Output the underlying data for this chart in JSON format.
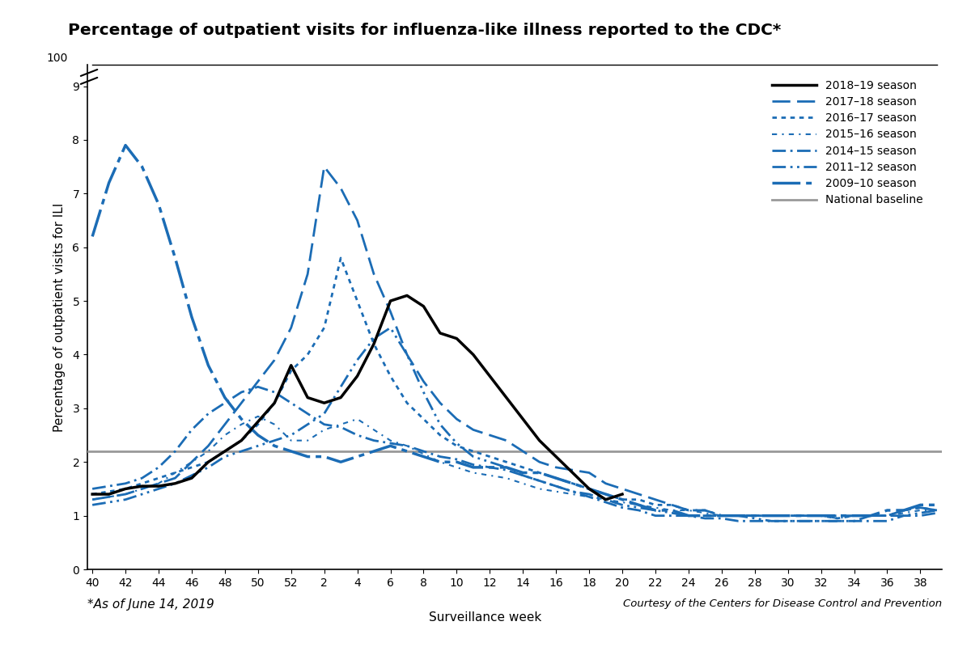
{
  "title": "Percentage of outpatient visits for influenza-like illness reported to the CDC*",
  "ylabel": "Percentage of outpatient visits for ILI",
  "xlabel": "Surveillance week",
  "footnote_left": "*As of June 14, 2019",
  "footnote_right": "Courtesy of the Centers for Disease Control and Prevention",
  "x_ticks": [
    40,
    42,
    44,
    46,
    48,
    50,
    52,
    2,
    4,
    6,
    8,
    10,
    12,
    14,
    16,
    18,
    20,
    22,
    24,
    26,
    28,
    30,
    32,
    34,
    36,
    38
  ],
  "ylim": [
    0,
    9.4
  ],
  "yticks": [
    0,
    1,
    2,
    3,
    4,
    5,
    6,
    7,
    8,
    9
  ],
  "national_baseline": 2.2,
  "background_color": "#ffffff",
  "blue_color": "#1B6CB5",
  "gray_color": "#999999",
  "black_color": "#000000",
  "seasons": {
    "2018_19": {
      "label": "2018–19 season",
      "color": "#000000",
      "linestyle": "solid",
      "linewidth": 2.5,
      "x": [
        40,
        41,
        42,
        43,
        44,
        45,
        46,
        47,
        48,
        49,
        50,
        51,
        52,
        1,
        2,
        3,
        4,
        5,
        6,
        7,
        8,
        9,
        10,
        11,
        12,
        13,
        14,
        15,
        16,
        17,
        18,
        19,
        20
      ],
      "y": [
        1.4,
        1.4,
        1.5,
        1.55,
        1.55,
        1.6,
        1.7,
        2.0,
        2.2,
        2.4,
        2.75,
        3.1,
        3.8,
        3.2,
        3.1,
        3.2,
        3.6,
        4.2,
        5.0,
        5.1,
        4.9,
        4.4,
        4.3,
        4.0,
        3.6,
        3.2,
        2.8,
        2.4,
        2.1,
        1.8,
        1.5,
        1.3,
        1.4
      ]
    },
    "2017_18": {
      "label": "2017–18 season",
      "color": "#1B6CB5",
      "linestyle": "dashed",
      "linewidth": 2.0,
      "x": [
        40,
        41,
        42,
        43,
        44,
        45,
        46,
        47,
        48,
        49,
        50,
        51,
        52,
        1,
        2,
        3,
        4,
        5,
        6,
        7,
        8,
        9,
        10,
        11,
        12,
        13,
        14,
        15,
        16,
        17,
        18,
        19,
        20,
        21,
        22,
        23,
        24,
        25,
        26,
        27,
        28,
        29,
        30,
        31,
        32,
        33,
        34,
        35,
        36,
        37,
        38,
        39
      ],
      "y": [
        1.3,
        1.35,
        1.4,
        1.5,
        1.6,
        1.7,
        2.0,
        2.3,
        2.7,
        3.1,
        3.5,
        3.9,
        4.5,
        5.5,
        7.5,
        7.1,
        6.5,
        5.5,
        4.8,
        4.0,
        3.5,
        3.1,
        2.8,
        2.6,
        2.5,
        2.4,
        2.2,
        2.0,
        1.9,
        1.85,
        1.8,
        1.6,
        1.5,
        1.4,
        1.3,
        1.2,
        1.1,
        1.1,
        1.0,
        1.0,
        1.0,
        1.0,
        1.0,
        1.0,
        1.0,
        1.0,
        1.0,
        1.0,
        1.0,
        1.1,
        1.15,
        1.1
      ]
    },
    "2016_17": {
      "label": "2016–17 season",
      "color": "#1B6CB5",
      "linestyle": "dotted",
      "linewidth": 2.0,
      "x": [
        40,
        41,
        42,
        43,
        44,
        45,
        46,
        47,
        48,
        49,
        50,
        51,
        52,
        1,
        2,
        3,
        4,
        5,
        6,
        7,
        8,
        9,
        10,
        11,
        12,
        13,
        14,
        15,
        16,
        17,
        18,
        19,
        20,
        21,
        22,
        23,
        24,
        25,
        26,
        27,
        28,
        29,
        30,
        31,
        32,
        33,
        34,
        35,
        36,
        37,
        38,
        39
      ],
      "y": [
        1.4,
        1.45,
        1.5,
        1.6,
        1.7,
        1.8,
        1.9,
        2.0,
        2.2,
        2.4,
        2.7,
        3.1,
        3.7,
        4.0,
        4.5,
        5.8,
        5.0,
        4.2,
        3.6,
        3.1,
        2.8,
        2.5,
        2.3,
        2.2,
        2.1,
        2.0,
        1.9,
        1.8,
        1.7,
        1.6,
        1.5,
        1.4,
        1.3,
        1.3,
        1.2,
        1.2,
        1.1,
        1.1,
        1.0,
        1.0,
        1.0,
        1.0,
        1.0,
        1.0,
        1.0,
        0.95,
        1.0,
        1.0,
        1.0,
        1.1,
        1.15,
        1.1
      ]
    },
    "2015_16": {
      "label": "2015–16 season",
      "color": "#1B6CB5",
      "linestyle": "dashdot",
      "linewidth": 1.5,
      "x": [
        40,
        41,
        42,
        43,
        44,
        45,
        46,
        47,
        48,
        49,
        50,
        51,
        52,
        1,
        2,
        3,
        4,
        5,
        6,
        7,
        8,
        9,
        10,
        11,
        12,
        13,
        14,
        15,
        16,
        17,
        18,
        19,
        20,
        21,
        22,
        23,
        24,
        25,
        26,
        27,
        28,
        29,
        30,
        31,
        32,
        33,
        34,
        35,
        36,
        37,
        38,
        39
      ],
      "y": [
        1.3,
        1.35,
        1.4,
        1.5,
        1.6,
        1.8,
        2.0,
        2.2,
        2.5,
        2.7,
        2.85,
        2.7,
        2.4,
        2.4,
        2.6,
        2.7,
        2.8,
        2.6,
        2.4,
        2.3,
        2.15,
        2.0,
        1.9,
        1.8,
        1.75,
        1.7,
        1.6,
        1.5,
        1.45,
        1.4,
        1.35,
        1.3,
        1.25,
        1.2,
        1.15,
        1.1,
        1.1,
        1.05,
        1.0,
        1.0,
        1.0,
        1.0,
        1.0,
        1.0,
        1.0,
        0.95,
        1.0,
        1.0,
        1.0,
        1.05,
        1.1,
        1.1
      ]
    },
    "2014_15": {
      "label": "2014–15 season",
      "color": "#1B6CB5",
      "linestyle": "dashed",
      "linewidth": 1.5,
      "x": [
        40,
        41,
        42,
        43,
        44,
        45,
        46,
        47,
        48,
        49,
        50,
        51,
        52,
        1,
        2,
        3,
        4,
        5,
        6,
        7,
        8,
        9,
        10,
        11,
        12,
        13,
        14,
        15,
        16,
        17,
        18,
        19,
        20,
        21,
        22,
        23,
        24,
        25,
        26,
        27,
        28,
        29,
        30,
        31,
        32,
        33,
        34,
        35,
        36,
        37,
        38,
        39
      ],
      "y": [
        1.5,
        1.55,
        1.6,
        1.7,
        1.9,
        2.2,
        2.6,
        2.9,
        3.1,
        3.3,
        3.4,
        3.3,
        3.1,
        2.9,
        2.7,
        2.65,
        2.5,
        2.4,
        2.35,
        2.3,
        2.2,
        2.1,
        2.05,
        1.95,
        1.9,
        1.85,
        1.75,
        1.65,
        1.55,
        1.45,
        1.35,
        1.25,
        1.15,
        1.1,
        1.0,
        1.0,
        1.0,
        0.95,
        0.95,
        0.9,
        0.9,
        0.9,
        0.9,
        0.9,
        0.9,
        0.9,
        0.9,
        0.9,
        0.9,
        1.0,
        1.0,
        1.05
      ]
    },
    "2011_12": {
      "label": "2011–12 season",
      "color": "#1B6CB5",
      "linestyle": "dashdotdotted",
      "linewidth": 2.0,
      "x": [
        40,
        41,
        42,
        43,
        44,
        45,
        46,
        47,
        48,
        49,
        50,
        51,
        52,
        1,
        2,
        3,
        4,
        5,
        6,
        7,
        8,
        9,
        10,
        11,
        12,
        13,
        14,
        15,
        16,
        17,
        18,
        19,
        20,
        21,
        22,
        23,
        24,
        25,
        26,
        27,
        28,
        29,
        30,
        31,
        32,
        33,
        34,
        35,
        36,
        37,
        38,
        39
      ],
      "y": [
        1.2,
        1.25,
        1.3,
        1.4,
        1.5,
        1.6,
        1.75,
        1.9,
        2.1,
        2.2,
        2.3,
        2.4,
        2.5,
        2.7,
        2.9,
        3.4,
        3.9,
        4.3,
        4.5,
        4.0,
        3.3,
        2.7,
        2.35,
        2.1,
        2.0,
        1.9,
        1.75,
        1.65,
        1.55,
        1.45,
        1.4,
        1.3,
        1.2,
        1.15,
        1.1,
        1.05,
        1.0,
        1.0,
        1.0,
        1.0,
        0.95,
        0.9,
        0.9,
        0.9,
        0.9,
        0.9,
        0.9,
        1.0,
        1.0,
        1.0,
        1.05,
        1.1
      ]
    },
    "2009_10": {
      "label": "2009–10 season",
      "color": "#1B6CB5",
      "linestyle": "dashdotted_heavy",
      "linewidth": 2.5,
      "x": [
        40,
        41,
        42,
        43,
        44,
        45,
        46,
        47,
        48,
        49,
        50,
        51,
        52,
        1,
        2,
        3,
        4,
        5,
        6,
        7,
        8,
        9,
        10,
        11,
        12,
        13,
        14,
        15,
        16,
        17,
        18,
        19,
        20,
        21,
        22,
        23,
        24,
        25,
        26,
        27,
        28,
        29,
        30,
        31,
        32,
        33,
        34,
        35,
        36,
        37,
        38,
        39
      ],
      "y": [
        6.2,
        7.2,
        7.9,
        7.5,
        6.8,
        5.8,
        4.7,
        3.8,
        3.2,
        2.8,
        2.5,
        2.3,
        2.2,
        2.1,
        2.1,
        2.0,
        2.1,
        2.2,
        2.3,
        2.2,
        2.1,
        2.0,
        2.0,
        1.9,
        1.9,
        1.9,
        1.8,
        1.8,
        1.7,
        1.6,
        1.5,
        1.4,
        1.3,
        1.2,
        1.1,
        1.1,
        1.0,
        1.0,
        1.0,
        1.0,
        1.0,
        1.0,
        1.0,
        1.0,
        1.0,
        1.0,
        1.0,
        1.0,
        1.1,
        1.1,
        1.2,
        1.2
      ]
    }
  }
}
